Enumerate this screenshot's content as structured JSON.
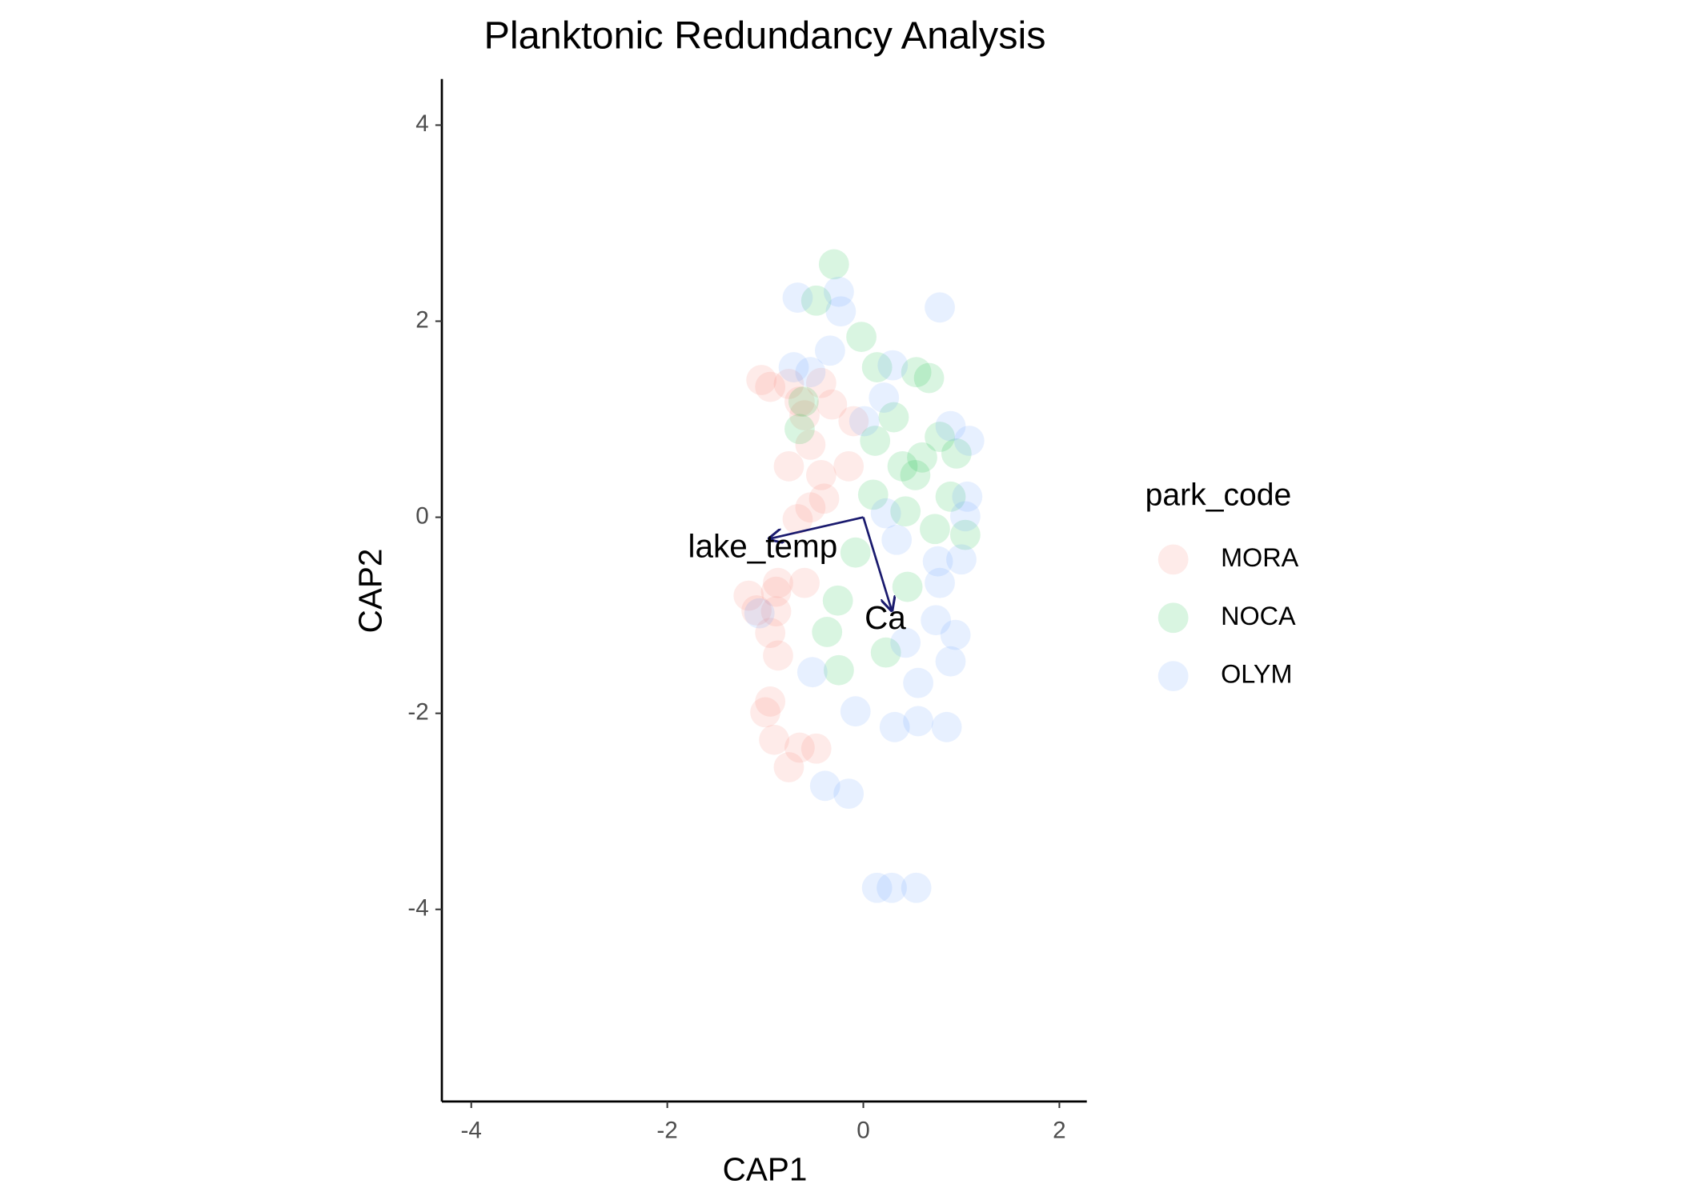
{
  "chart_data": {
    "type": "scatter",
    "title": "Planktonic Redundancy Analysis",
    "x_label": "CAP1",
    "y_label": "CAP2",
    "legend_title": "park_code",
    "legend": "right",
    "xlim": [
      -4.3,
      2.28
    ],
    "ylim": [
      -5.96,
      4.47
    ],
    "xticks": [
      -4,
      -2,
      0,
      2
    ],
    "yticks": [
      -4,
      -2,
      0,
      2,
      4
    ],
    "series": [
      {
        "name": "MORA",
        "color": "#F8766D",
        "x": [
          -1.04,
          -0.95,
          -0.76,
          -0.43,
          -0.65,
          -0.6,
          -0.76,
          -0.54,
          -0.15,
          -0.43,
          -0.4,
          -0.67,
          -0.87,
          -0.89,
          -0.6,
          -1.17,
          -0.89,
          -0.95,
          -0.87,
          -0.95,
          -1.0,
          -0.91,
          -0.65,
          -0.48,
          -0.76,
          -0.32,
          -0.1,
          -1.09,
          -0.54
        ],
        "values": [
          1.4,
          1.33,
          1.36,
          1.37,
          1.18,
          1.04,
          0.52,
          0.74,
          0.52,
          0.43,
          0.19,
          -0.02,
          -0.67,
          -0.76,
          -0.67,
          -0.8,
          -0.96,
          -1.18,
          -1.41,
          -1.88,
          -1.99,
          -2.27,
          -2.35,
          -2.36,
          -2.55,
          1.15,
          0.98,
          -0.95,
          0.1
        ]
      },
      {
        "name": "NOCA",
        "color": "#00BA38",
        "x": [
          -0.3,
          -0.48,
          -0.02,
          0.14,
          0.54,
          0.67,
          -0.61,
          0.31,
          0.12,
          0.6,
          0.53,
          0.78,
          0.4,
          0.1,
          -0.08,
          0.43,
          0.73,
          0.89,
          -0.26,
          -0.37,
          -0.25,
          0.23,
          0.45,
          1.04,
          0.95,
          -0.65
        ],
        "values": [
          2.58,
          2.21,
          1.84,
          1.53,
          1.48,
          1.42,
          1.18,
          1.02,
          0.78,
          0.61,
          0.43,
          0.82,
          0.52,
          0.23,
          -0.36,
          0.06,
          -0.12,
          0.21,
          -0.85,
          -1.17,
          -1.56,
          -1.38,
          -0.71,
          -0.18,
          0.65,
          0.9
        ]
      },
      {
        "name": "OLYM",
        "color": "#619CFF",
        "x": [
          -0.67,
          -0.25,
          -0.23,
          0.78,
          -0.34,
          -0.54,
          -0.71,
          0.3,
          0.21,
          0.01,
          0.89,
          1.08,
          1.06,
          1.04,
          0.76,
          1.0,
          0.78,
          0.74,
          0.94,
          0.43,
          0.89,
          0.56,
          -0.52,
          -0.08,
          0.32,
          0.56,
          0.85,
          -0.39,
          -0.15,
          0.14,
          0.29,
          0.54,
          -1.06,
          0.34,
          0.23
        ],
        "values": [
          2.24,
          2.3,
          2.1,
          2.14,
          1.7,
          1.48,
          1.53,
          1.55,
          1.22,
          0.98,
          0.93,
          0.78,
          0.21,
          0.01,
          -0.45,
          -0.43,
          -0.67,
          -1.05,
          -1.2,
          -1.28,
          -1.47,
          -1.69,
          -1.58,
          -1.98,
          -2.14,
          -2.08,
          -2.14,
          -2.74,
          -2.82,
          -3.78,
          -3.78,
          -3.78,
          -0.98,
          -0.23,
          0.04
        ]
      }
    ],
    "arrows": [
      {
        "label": "lake_temp",
        "x": -0.96,
        "y": -0.22
      },
      {
        "label": "Ca",
        "x": 0.29,
        "y": -0.95
      }
    ]
  }
}
